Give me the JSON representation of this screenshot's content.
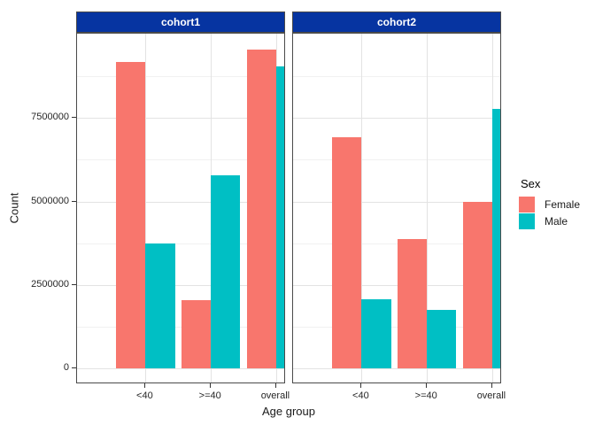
{
  "chart_data": {
    "type": "bar",
    "title": "",
    "xlabel": "Age group",
    "ylabel": "Count",
    "categories": [
      "<40",
      ">=40",
      "overall"
    ],
    "facets": [
      {
        "label": "cohort1",
        "series": [
          {
            "name": "Female",
            "color": "#F8766D",
            "values": [
              9180000,
              2050000,
              9560000
            ]
          },
          {
            "name": "Male",
            "color": "#00BFC4",
            "values": [
              3750000,
              5790000,
              9060000
            ]
          }
        ]
      },
      {
        "label": "cohort2",
        "series": [
          {
            "name": "Female",
            "color": "#F8766D",
            "values": [
              6920000,
              3880000,
              5000000
            ]
          },
          {
            "name": "Male",
            "color": "#00BFC4",
            "values": [
              2060000,
              1760000,
              7780000
            ]
          }
        ]
      }
    ],
    "y_ticks": [
      0,
      2500000,
      5000000,
      7500000
    ],
    "y_minor_ticks": [
      1250000,
      3750000,
      6250000,
      8750000
    ],
    "y_range": [
      -480000,
      10030000
    ],
    "grid": "on",
    "legend": {
      "position": "right",
      "title": "Sex",
      "entries": [
        {
          "label": "Female",
          "color": "#F8766D"
        },
        {
          "label": "Male",
          "color": "#00BFC4"
        }
      ]
    },
    "colors": {
      "strip_background": "#0634A1",
      "strip_text": "#ffffff",
      "panel_border": "#4a4a4a",
      "grid_major": "#e3e3e3",
      "grid_minor": "#f1f1f1",
      "female": "#F8766D",
      "male": "#00BFC4"
    }
  }
}
